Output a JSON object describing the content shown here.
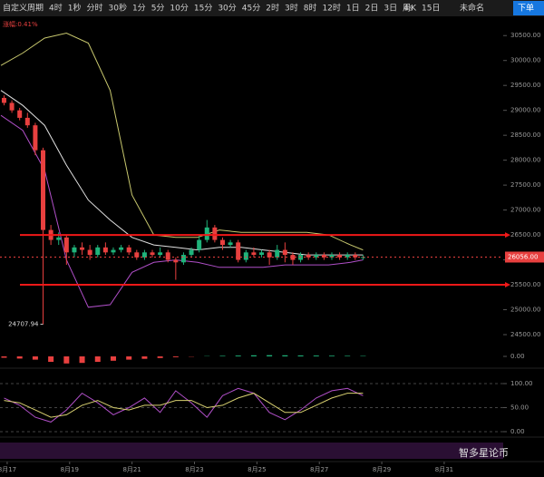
{
  "toolbar": {
    "items": [
      "自定义周期",
      "4时",
      "1秒",
      "分时",
      "30秒",
      "1分",
      "5分",
      "10分",
      "15分",
      "30分",
      "45分",
      "2时",
      "3时",
      "8时",
      "12时",
      "1日",
      "2日",
      "3日",
      "周K",
      "15日"
    ],
    "right": [
      "4s",
      "未命名",
      "下单"
    ]
  },
  "watermark": "智多星论币",
  "chart_data": [
    {
      "type": "candlestick",
      "subtitle": "涨幅:0.41%",
      "xlim": [
        16.77,
        32.89
      ],
      "xticks": [
        {
          "value": 17,
          "label": "8月17"
        },
        {
          "value": 19,
          "label": "8月19"
        },
        {
          "value": 21,
          "label": "8月21"
        },
        {
          "value": 23,
          "label": "8月23"
        },
        {
          "value": 25,
          "label": "8月25"
        },
        {
          "value": 27,
          "label": "8月27"
        },
        {
          "value": 29,
          "label": "8月29"
        },
        {
          "value": 31,
          "label": "8月31"
        }
      ],
      "ylim": [
        24300,
        30850
      ],
      "yticks": [
        {
          "value": 24500,
          "label": "24500.00"
        },
        {
          "value": 25000,
          "label": "25000.00"
        },
        {
          "value": 25500,
          "label": "25500.00"
        },
        {
          "value": 26000,
          "label": "26000.00"
        },
        {
          "value": 26500,
          "label": "26500.00"
        },
        {
          "value": 27000,
          "label": "27000.00"
        },
        {
          "value": 27500,
          "label": "27500.00"
        },
        {
          "value": 28000,
          "label": "28000.00"
        },
        {
          "value": 28500,
          "label": "28500.00"
        },
        {
          "value": 29000,
          "label": "29000.00"
        },
        {
          "value": 29500,
          "label": "29500.00"
        },
        {
          "value": 30000,
          "label": "30000.00"
        },
        {
          "value": 30500,
          "label": "30500.00"
        }
      ],
      "up_color": "#1fb37a",
      "down_color": "#e8403f",
      "x": [
        16.9,
        17.15,
        17.4,
        17.65,
        17.9,
        18.15,
        18.4,
        18.65,
        18.9,
        19.15,
        19.4,
        19.65,
        19.9,
        20.15,
        20.4,
        20.65,
        20.9,
        21.15,
        21.4,
        21.65,
        21.9,
        22.15,
        22.4,
        22.65,
        22.9,
        23.15,
        23.4,
        23.65,
        23.9,
        24.15,
        24.4,
        24.65,
        24.9,
        25.15,
        25.4,
        25.65,
        25.9,
        26.15,
        26.4,
        26.65,
        26.9,
        27.15,
        27.4,
        27.65,
        27.9,
        28.15,
        28.4
      ],
      "open": [
        29250,
        29150,
        29000,
        28850,
        28700,
        28200,
        26600,
        26400,
        26450,
        26150,
        26250,
        26200,
        26100,
        26250,
        26150,
        26200,
        26250,
        26150,
        26050,
        26150,
        26100,
        26150,
        26000,
        25950,
        26100,
        26200,
        26400,
        26650,
        26400,
        26300,
        26350,
        26000,
        26150,
        26100,
        26150,
        26050,
        26200,
        26100,
        26000,
        26100,
        26050,
        26100,
        26050,
        26100,
        26050,
        26100,
        26050
      ],
      "close": [
        29150,
        29000,
        28850,
        28700,
        28200,
        26600,
        26400,
        26450,
        26150,
        26250,
        26200,
        26100,
        26250,
        26150,
        26200,
        26250,
        26150,
        26050,
        26150,
        26100,
        26150,
        26000,
        25950,
        26100,
        26200,
        26400,
        26650,
        26400,
        26300,
        26350,
        26000,
        26150,
        26100,
        26150,
        26050,
        26200,
        26100,
        26000,
        26100,
        26050,
        26100,
        26050,
        26100,
        26050,
        26100,
        26050,
        26056
      ],
      "high": [
        29300,
        29200,
        29050,
        28950,
        28750,
        28250,
        26700,
        26550,
        26500,
        26300,
        26350,
        26300,
        26300,
        26350,
        26250,
        26300,
        26300,
        26200,
        26200,
        26200,
        26250,
        26200,
        26050,
        26150,
        26250,
        26500,
        26800,
        26700,
        26450,
        26400,
        26400,
        26200,
        26250,
        26200,
        26200,
        26300,
        26350,
        26150,
        26150,
        26150,
        26150,
        26150,
        26150,
        26150,
        26150,
        26150,
        26100
      ],
      "low": [
        29100,
        28950,
        28800,
        28650,
        28100,
        24707.94,
        26300,
        26300,
        25900,
        26050,
        26100,
        26000,
        26050,
        26100,
        26100,
        26150,
        26100,
        26000,
        26000,
        26050,
        26050,
        25950,
        25600,
        25900,
        26050,
        26150,
        26350,
        26350,
        26200,
        26250,
        25950,
        25950,
        26050,
        26050,
        25900,
        26000,
        25950,
        25900,
        25950,
        26000,
        26000,
        26000,
        26000,
        26000,
        26000,
        26000,
        26000
      ],
      "overlay_x": [
        16.8,
        17.5,
        18.2,
        18.9,
        19.6,
        20.3,
        21,
        21.7,
        22.4,
        23.1,
        23.8,
        24.5,
        25.2,
        25.9,
        26.6,
        27.3,
        28,
        28.4
      ],
      "overlays": [
        {
          "color": "#c8c86e",
          "values": [
            29900,
            30150,
            30450,
            30550,
            30350,
            29400,
            27300,
            26500,
            26450,
            26450,
            26600,
            26550,
            26550,
            26550,
            26550,
            26500,
            26300,
            26200
          ]
        },
        {
          "color": "#e0e0e0",
          "values": [
            29400,
            29100,
            28700,
            27900,
            27200,
            26800,
            26450,
            26300,
            26250,
            26200,
            26250,
            26250,
            26200,
            26150,
            26100,
            26100,
            26100,
            26100
          ]
        },
        {
          "color": "#b04fc8",
          "values": [
            28900,
            28600,
            27800,
            26000,
            25050,
            25100,
            25750,
            25950,
            26000,
            25950,
            25850,
            25850,
            25850,
            25900,
            25900,
            25900,
            25950,
            26000
          ]
        }
      ],
      "levels": [
        26500,
        25500
      ],
      "level_color": "#f01818",
      "annotations": [
        24707.94
      ],
      "last_price": {
        "value": 26056,
        "label": "26056.00"
      }
    },
    {
      "type": "bar",
      "ylim": [
        -300,
        300
      ],
      "yticks": [
        {
          "value": 0,
          "label": "0.00"
        }
      ],
      "color_positive": "#1fb37a",
      "color_negative": "#e8403f",
      "x": [
        16.9,
        17.4,
        17.9,
        18.4,
        18.9,
        19.4,
        19.9,
        20.4,
        20.9,
        21.4,
        21.9,
        22.4,
        22.9,
        23.4,
        23.9,
        24.4,
        24.9,
        25.4,
        25.9,
        26.4,
        26.9,
        27.4,
        27.9,
        28.4
      ],
      "values": [
        -50,
        -80,
        -120,
        -200,
        -260,
        -240,
        -200,
        -160,
        -120,
        -90,
        -60,
        -30,
        -10,
        10,
        20,
        30,
        40,
        45,
        40,
        35,
        30,
        25,
        20,
        15
      ]
    },
    {
      "type": "line",
      "ylim": [
        0,
        100
      ],
      "yticks": [
        {
          "value": 0,
          "label": "0.00"
        },
        {
          "value": 50,
          "label": "50.00"
        },
        {
          "value": 100,
          "label": "100.00"
        }
      ],
      "x": [
        16.9,
        17.4,
        17.9,
        18.4,
        18.9,
        19.4,
        19.9,
        20.4,
        20.9,
        21.4,
        21.9,
        22.4,
        22.9,
        23.4,
        23.9,
        24.4,
        24.9,
        25.4,
        25.9,
        26.4,
        26.9,
        27.4,
        27.9,
        28.4
      ],
      "series": [
        {
          "color": "#b04fc8",
          "values": [
            70,
            55,
            30,
            20,
            45,
            80,
            60,
            35,
            50,
            70,
            40,
            85,
            60,
            30,
            75,
            90,
            80,
            40,
            25,
            45,
            70,
            85,
            90,
            75
          ]
        },
        {
          "color": "#d8d070",
          "values": [
            65,
            60,
            45,
            30,
            35,
            55,
            65,
            50,
            45,
            55,
            55,
            65,
            65,
            50,
            55,
            70,
            80,
            60,
            40,
            40,
            55,
            70,
            80,
            80
          ]
        }
      ]
    }
  ]
}
